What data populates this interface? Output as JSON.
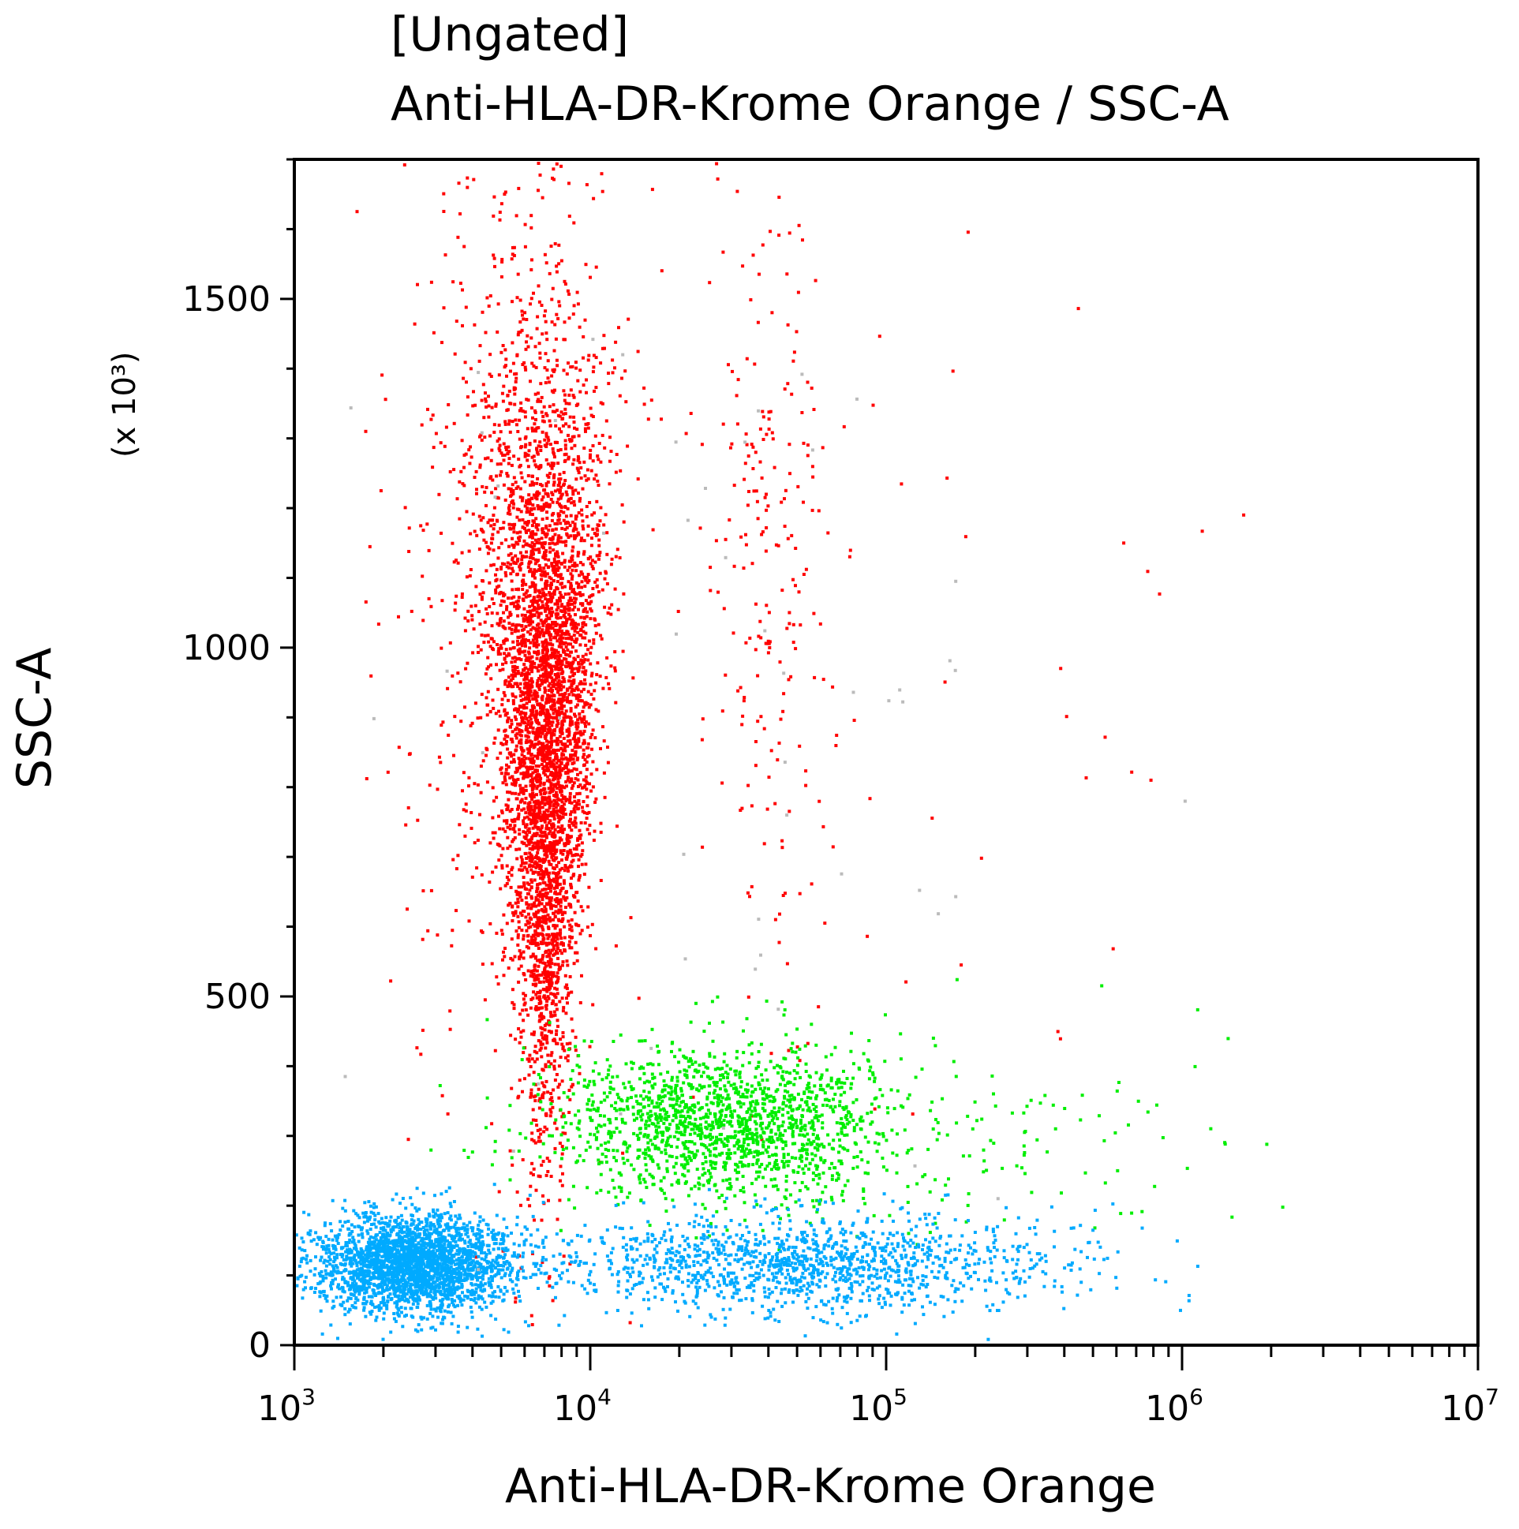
{
  "chart_data": {
    "type": "scatter",
    "title": "[Ungated]",
    "subtitle": "Anti-HLA-DR-Krome Orange / SSC-A",
    "xlabel": "Anti-HLA-DR-Krome Orange",
    "ylabel": "SSC-A",
    "yunit": "(x 10³)",
    "xscale": "log",
    "xlim": [
      1000,
      10000000
    ],
    "ylim": [
      0,
      1700
    ],
    "xticks": [
      {
        "value": 1000,
        "base": "10",
        "exp": "3"
      },
      {
        "value": 10000,
        "base": "10",
        "exp": "4"
      },
      {
        "value": 100000,
        "base": "10",
        "exp": "5"
      },
      {
        "value": 1000000,
        "base": "10",
        "exp": "6"
      },
      {
        "value": 10000000,
        "base": "10",
        "exp": "7"
      }
    ],
    "yticks": [
      "0",
      "500",
      "1000",
      "1500"
    ],
    "grid": false,
    "populations": [
      {
        "color": "#ff0000",
        "x_center": 7000,
        "y_center": 900,
        "count": 4200,
        "x_log_sd": 0.07,
        "y_sd": 260
      },
      {
        "color": "#ff0000",
        "x_center": 5500,
        "y_center": 1100,
        "count": 700,
        "x_log_sd": 0.18,
        "y_sd": 330
      },
      {
        "color": "#ff0000",
        "x_center": 40000,
        "y_center": 1150,
        "count": 220,
        "x_log_sd": 0.12,
        "y_sd": 300
      },
      {
        "color": "#ff0000",
        "x_center": 150000,
        "y_center": 900,
        "count": 40,
        "x_log_sd": 0.5,
        "y_sd": 300
      },
      {
        "color": "#00ee00",
        "x_center": 28000,
        "y_center": 320,
        "count": 1600,
        "x_log_sd": 0.28,
        "y_sd": 55
      },
      {
        "color": "#00ee00",
        "x_center": 150000,
        "y_center": 300,
        "count": 150,
        "x_log_sd": 0.5,
        "y_sd": 70
      },
      {
        "color": "#00aaff",
        "x_center": 2500,
        "y_center": 120,
        "count": 2600,
        "x_log_sd": 0.16,
        "y_sd": 35
      },
      {
        "color": "#00aaff",
        "x_center": 50000,
        "y_center": 120,
        "count": 1400,
        "x_log_sd": 0.45,
        "y_sd": 35
      },
      {
        "color": "#bbbbbb",
        "x_center": 30000,
        "y_center": 900,
        "count": 60,
        "x_log_sd": 0.6,
        "y_sd": 400
      }
    ]
  }
}
